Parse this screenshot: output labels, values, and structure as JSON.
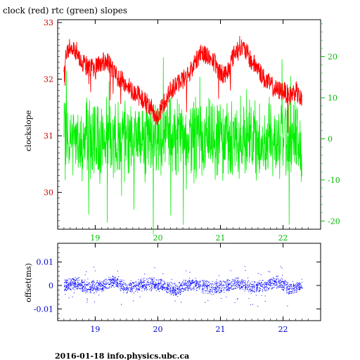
{
  "chart_data": [
    {
      "type": "line",
      "title": "clock (red) rtc (green) slopes",
      "ylabel": "clockslope",
      "x_ticks": [
        19,
        20,
        21,
        22
      ],
      "x_range": [
        18.4,
        22.6
      ],
      "ylim_left": [
        29.35,
        33.05
      ],
      "y_ticks_left": [
        30,
        31,
        32,
        33
      ],
      "ylim_right": [
        -22,
        29
      ],
      "y_ticks_right": [
        -20,
        -10,
        0,
        10,
        20
      ],
      "series": [
        {
          "name": "clock (red)",
          "color": "#ff0000",
          "axis": "left",
          "x": [
            18.5,
            18.6,
            18.7,
            18.8,
            18.9,
            19.0,
            19.1,
            19.2,
            19.3,
            19.4,
            19.5,
            19.6,
            19.7,
            19.8,
            19.9,
            20.0,
            20.1,
            20.2,
            20.3,
            20.4,
            20.5,
            20.6,
            20.7,
            20.8,
            20.9,
            21.0,
            21.1,
            21.2,
            21.3,
            21.4,
            21.5,
            21.6,
            21.7,
            21.8,
            21.9,
            22.0,
            22.1,
            22.2,
            22.3
          ],
          "y": [
            32.3,
            32.6,
            32.5,
            32.3,
            32.2,
            32.2,
            32.3,
            32.3,
            32.1,
            32.0,
            31.9,
            31.8,
            31.7,
            31.6,
            31.5,
            31.3,
            31.6,
            31.8,
            31.9,
            32.0,
            32.1,
            32.3,
            32.5,
            32.4,
            32.3,
            32.1,
            32.1,
            32.4,
            32.6,
            32.5,
            32.3,
            32.2,
            32.0,
            31.9,
            31.8,
            31.8,
            31.7,
            31.8,
            31.6
          ]
        },
        {
          "name": "rtc (green)",
          "color": "#00ee00",
          "axis": "right",
          "x": [
            18.5,
            18.6,
            18.7,
            18.8,
            18.9,
            19.0,
            19.1,
            19.2,
            19.3,
            19.4,
            19.5,
            19.6,
            19.7,
            19.8,
            19.9,
            20.0,
            20.1,
            20.2,
            20.3,
            20.4,
            20.5,
            20.6,
            20.7,
            20.8,
            20.9,
            21.0,
            21.1,
            21.2,
            21.3,
            21.4,
            21.5,
            21.6,
            21.7,
            21.8,
            21.9,
            22.0,
            22.1,
            22.2,
            22.3
          ],
          "y": [
            0,
            0,
            -1,
            0,
            0,
            -1,
            0,
            0,
            0,
            0,
            0,
            0,
            0,
            0,
            0,
            0,
            0,
            0,
            0,
            0,
            0,
            0,
            0,
            0,
            0,
            0,
            0,
            0,
            0,
            0,
            0,
            0,
            0,
            0,
            0,
            0,
            0,
            0,
            -4
          ]
        }
      ]
    },
    {
      "type": "scatter",
      "ylabel": "offset(ms)",
      "x_ticks": [
        19,
        20,
        21,
        22
      ],
      "x_range": [
        18.4,
        22.6
      ],
      "ylim": [
        -0.015,
        0.018
      ],
      "y_ticks": [
        0.01,
        0,
        -0.01
      ],
      "y_tick_labels": [
        "0.01",
        "0",
        "-0.01"
      ],
      "series": [
        {
          "color": "#0000ff",
          "x": [
            18.5,
            18.7,
            18.9,
            19.1,
            19.3,
            19.5,
            19.7,
            19.9,
            20.1,
            20.3,
            20.5,
            20.7,
            20.9,
            21.1,
            21.3,
            21.5,
            21.7,
            21.9,
            22.1,
            22.3
          ],
          "y": [
            0.0,
            0.001,
            -0.001,
            0.0,
            0.002,
            -0.001,
            0.0,
            0.001,
            0.0,
            -0.002,
            0.001,
            0.0,
            -0.001,
            0.0,
            0.001,
            -0.001,
            0.0,
            0.002,
            -0.001,
            0.0
          ]
        }
      ]
    }
  ],
  "footer": "2016-01-18 info.physics.ubc.ca"
}
